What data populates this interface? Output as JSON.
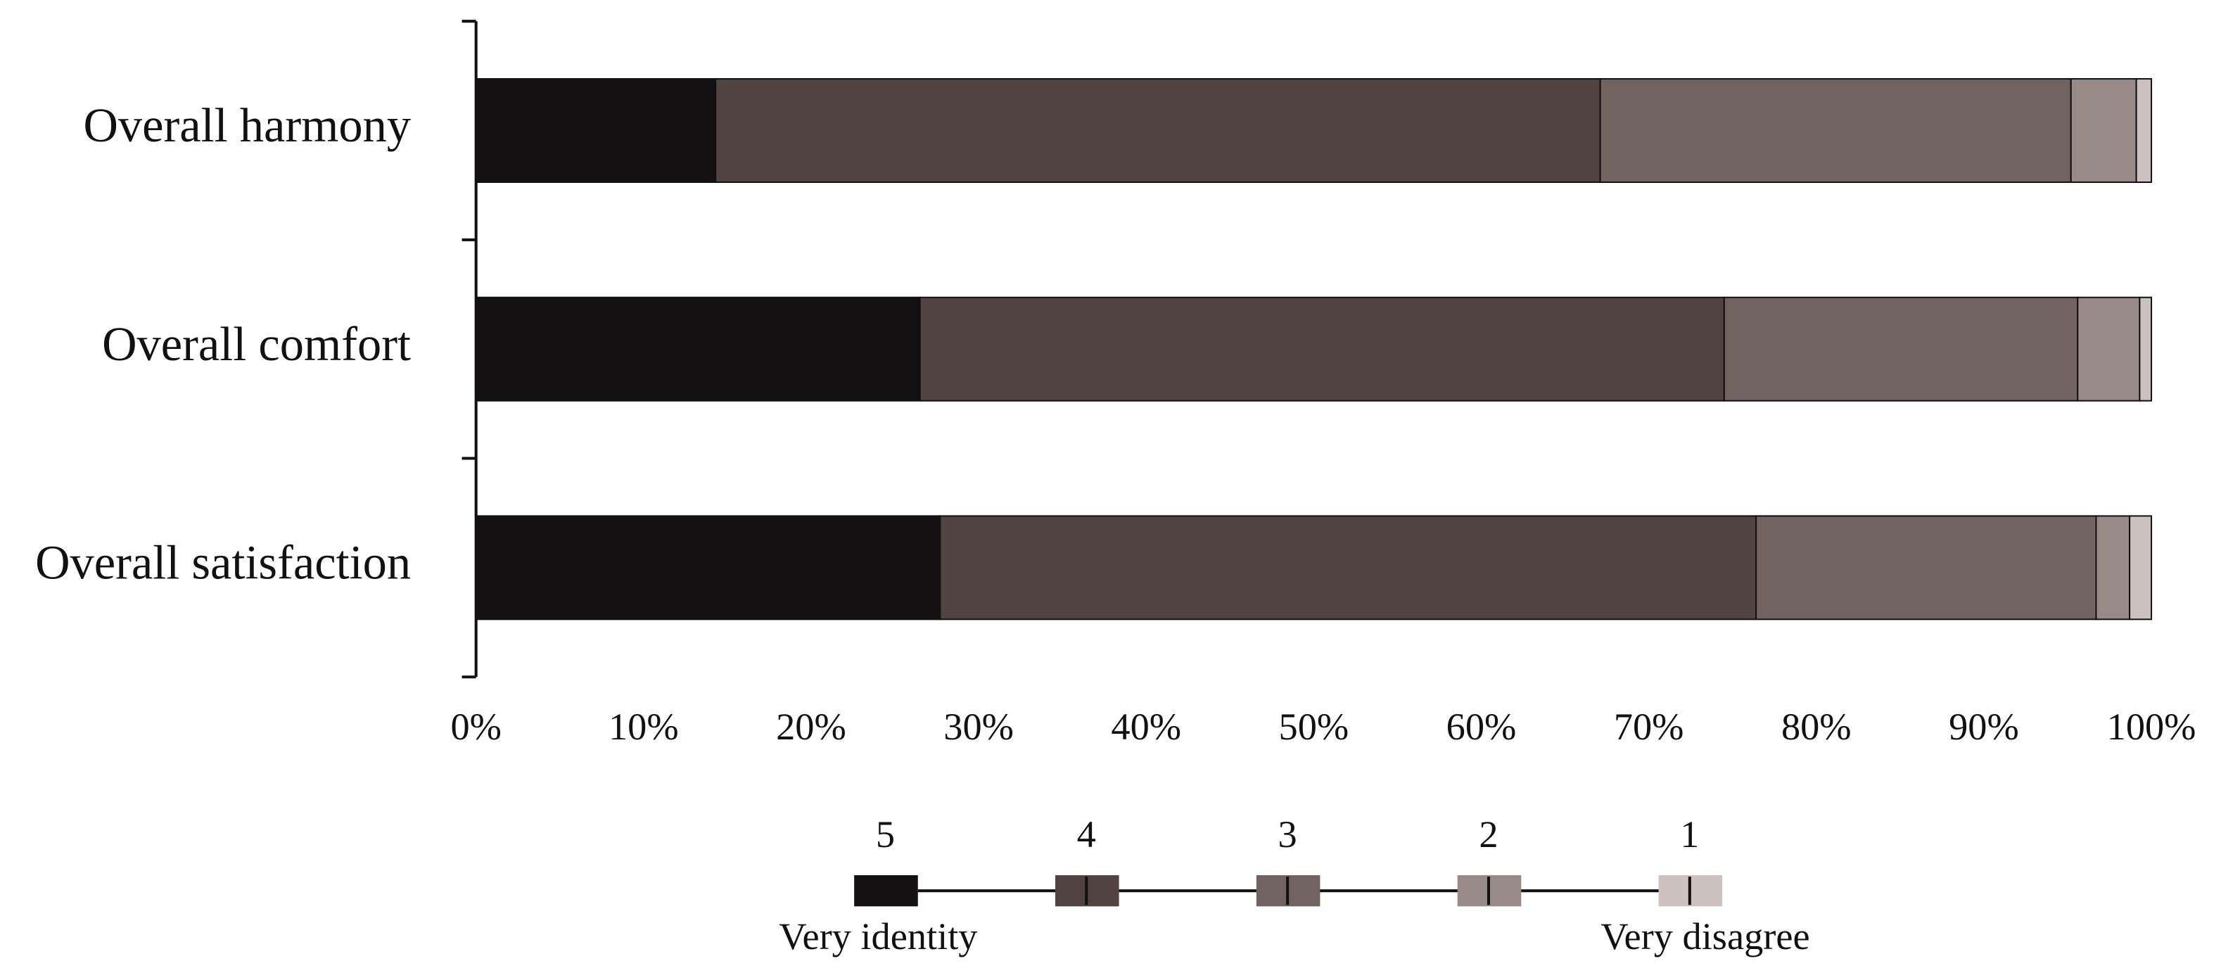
{
  "chart_data": {
    "type": "stacked-bar-horizontal",
    "categories": [
      "Overall harmony",
      "Overall comfort",
      "Overall satisfaction"
    ],
    "series": [
      {
        "name": "5",
        "color": "#121010",
        "values": [
          14.3,
          26.5,
          27.7
        ]
      },
      {
        "name": "4",
        "color": "#504340",
        "values": [
          52.8,
          48.0,
          48.7
        ]
      },
      {
        "name": "3",
        "color": "#706360",
        "values": [
          28.1,
          21.1,
          20.3
        ]
      },
      {
        "name": "2",
        "color": "#978a87",
        "values": [
          3.9,
          3.7,
          2.0
        ]
      },
      {
        "name": "1",
        "color": "#cdc2bf",
        "values": [
          0.9,
          0.7,
          1.3
        ]
      }
    ],
    "xlim": [
      0,
      100
    ],
    "xticks": [
      {
        "value": 0,
        "label": "0%"
      },
      {
        "value": 10,
        "label": "10%"
      },
      {
        "value": 20,
        "label": "20%"
      },
      {
        "value": 30,
        "label": "30%"
      },
      {
        "value": 40,
        "label": "40%"
      },
      {
        "value": 50,
        "label": "50%"
      },
      {
        "value": 60,
        "label": "60%"
      },
      {
        "value": 70,
        "label": "70%"
      },
      {
        "value": 80,
        "label": "80%"
      },
      {
        "value": 90,
        "label": "90%"
      },
      {
        "value": 100,
        "label": "100%"
      }
    ],
    "legend_start_label": "Very identity",
    "legend_end_label": "Very disagree"
  }
}
